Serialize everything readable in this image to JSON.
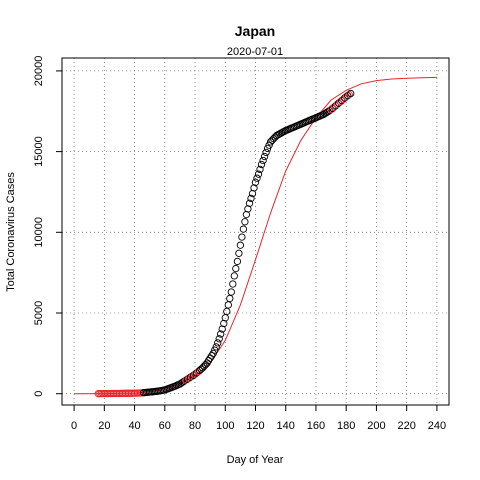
{
  "chart_data": {
    "type": "scatter",
    "title": "Japan",
    "subtitle": "2020-07-01",
    "xlabel": "Day of Year",
    "ylabel": "Total Coronavirus Cases",
    "xlim": [
      -8,
      248
    ],
    "ylim": [
      -700,
      20800
    ],
    "x_ticks": [
      0,
      20,
      40,
      60,
      80,
      100,
      120,
      140,
      160,
      180,
      200,
      220,
      240
    ],
    "y_ticks": [
      0,
      5000,
      10000,
      15000,
      20000
    ],
    "grid": true,
    "colors": {
      "observed": "#000000",
      "highlighted": "#e8262b",
      "fit": "#e8262b"
    },
    "observed": {
      "x": [
        16,
        20,
        25,
        30,
        35,
        40,
        45,
        50,
        55,
        60,
        65,
        70,
        75,
        80,
        85,
        88,
        90,
        92,
        94,
        96,
        98,
        100,
        102,
        104,
        106,
        108,
        110,
        112,
        114,
        116,
        118,
        120,
        122,
        124,
        126,
        128,
        130,
        132,
        134,
        136,
        140,
        145,
        150,
        155,
        160,
        165,
        170,
        175,
        180,
        183
      ],
      "y": [
        2,
        5,
        10,
        15,
        25,
        30,
        50,
        100,
        150,
        230,
        400,
        600,
        900,
        1200,
        1600,
        1900,
        2200,
        2500,
        2900,
        3400,
        4000,
        4700,
        5500,
        6300,
        7300,
        8200,
        9200,
        10200,
        11100,
        11800,
        12400,
        13100,
        13600,
        14200,
        14700,
        15200,
        15600,
        15800,
        16000,
        16100,
        16300,
        16500,
        16700,
        16900,
        17100,
        17300,
        17600,
        18000,
        18400,
        18600
      ]
    },
    "highlighted_x": [
      16,
      17,
      18,
      19,
      20,
      21,
      22,
      23,
      24,
      25,
      26,
      27,
      28,
      29,
      30,
      31,
      32,
      33,
      34,
      35,
      36,
      37,
      38,
      39,
      40,
      41,
      42,
      43,
      44,
      45,
      74,
      76,
      78,
      80,
      82,
      170,
      172,
      174,
      176,
      178,
      180,
      182
    ],
    "fit": {
      "x": [
        0,
        20,
        40,
        60,
        70,
        80,
        90,
        100,
        110,
        120,
        130,
        140,
        150,
        160,
        170,
        180,
        190,
        200,
        210,
        220,
        230,
        240
      ],
      "y": [
        0,
        5,
        30,
        250,
        600,
        1100,
        1900,
        3300,
        5500,
        8300,
        11200,
        13800,
        15700,
        17100,
        18200,
        18800,
        19200,
        19400,
        19500,
        19550,
        19580,
        19600
      ]
    }
  }
}
